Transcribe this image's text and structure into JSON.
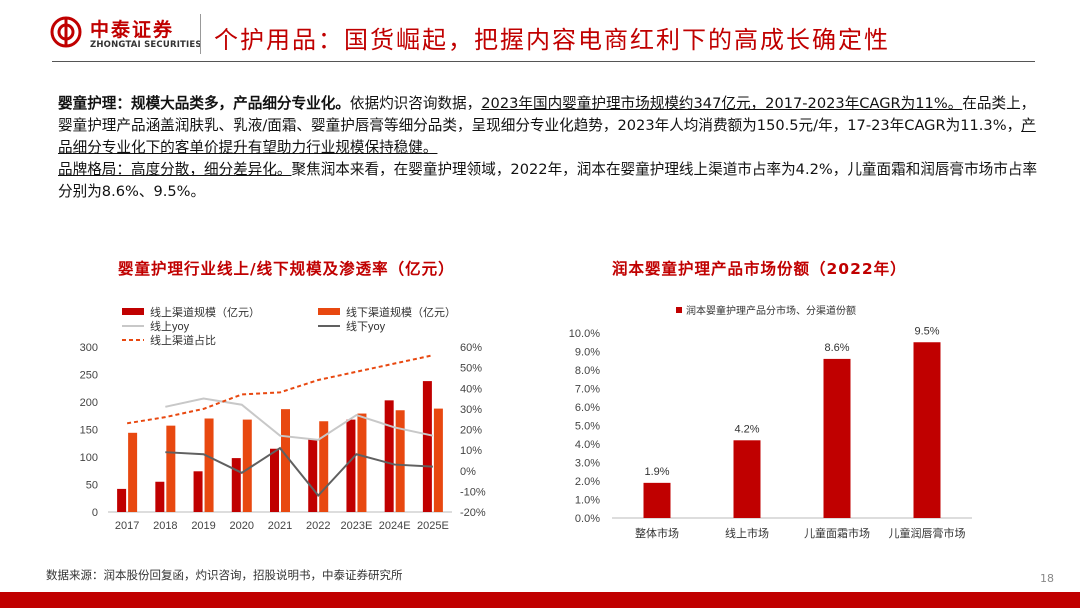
{
  "header": {
    "logo_cn": "中泰证券",
    "logo_en": "ZHONGTAI SECURITIES",
    "title": "个护用品：国货崛起，把握内容电商红利下的高成长确定性"
  },
  "body": {
    "p1_bold": "婴童护理：规模大品类多，产品细分专业化。",
    "p1_text": "依据灼识咨询数据，",
    "p1_u1": "2023年国内婴童护理市场规模约347亿元，2017-2023年CAGR为11%。",
    "p1_text2": "在品类上，婴童护理产品涵盖润肤乳、乳液/面霜、婴童护唇膏等细分品类，呈现细分专业化趋势，2023年人均消费额为150.5元/年，17-23年CAGR为11.3%，",
    "p1_u2": "产品细分专业化下的客单价提升有望助力行业规模保持稳健。",
    "p2_u_bold": "品牌格局：高度分散，细分差异化。",
    "p2_text": "聚焦润本来看，在婴童护理领域，2022年，润本在婴童护理线上渠道市占率为4.2%，儿童面霜和润唇膏市场市占率分别为8.6%、9.5%。"
  },
  "left_chart_title": "婴童护理行业线上/线下规模及渗透率（亿元）",
  "right_chart_title": "润本婴童护理产品市场份额（2022年）",
  "footer": {
    "source": "数据来源：润本股份回复函，灼识咨询，招股说明书，中泰证券研究所",
    "page": "18"
  },
  "colors": {
    "accent": "#c00000",
    "online_bar": "#c00000",
    "offline_bar": "#e84810",
    "online_yoy": "#c8c8c8",
    "offline_yoy": "#606060",
    "share_line": "#e84810"
  },
  "chart_data": [
    {
      "type": "bar",
      "categories": [
        "2017",
        "2018",
        "2019",
        "2020",
        "2021",
        "2022",
        "2023E",
        "2024E",
        "2025E"
      ],
      "series": [
        {
          "name": "线上渠道规模（亿元）",
          "type": "bar",
          "axis": "left",
          "values": [
            42,
            55,
            74,
            98,
            115,
            132,
            168,
            203,
            238
          ]
        },
        {
          "name": "线下渠道规模（亿元）",
          "type": "bar",
          "axis": "left",
          "values": [
            144,
            157,
            170,
            168,
            187,
            165,
            179,
            185,
            188
          ]
        },
        {
          "name": "线上yoy",
          "type": "line",
          "axis": "right",
          "values": [
            null,
            31,
            35,
            32,
            17,
            15,
            27,
            21,
            17
          ]
        },
        {
          "name": "线下yoy",
          "type": "line",
          "axis": "right",
          "values": [
            null,
            9,
            8,
            -1,
            11,
            -12,
            8,
            3,
            2
          ]
        },
        {
          "name": "线上渠道占比",
          "type": "line",
          "dashed": true,
          "axis": "right",
          "values": [
            23,
            26,
            30,
            37,
            38,
            44,
            48,
            52,
            56
          ]
        }
      ],
      "ylim": [
        0,
        300
      ],
      "yticks": [
        "300",
        "250",
        "200",
        "150",
        "100",
        "50",
        "0"
      ],
      "y2lim": [
        -20,
        60
      ],
      "y2ticks": [
        "60%",
        "50%",
        "40%",
        "30%",
        "20%",
        "10%",
        "0%",
        "-10%",
        "-20%"
      ],
      "legend": "top"
    },
    {
      "type": "bar",
      "categories": [
        "整体市场",
        "线上市场",
        "儿童面霜市场",
        "儿童润唇膏市场"
      ],
      "series": [
        {
          "name": "润本婴童护理产品分市场、分渠道份额",
          "values": [
            1.9,
            4.2,
            8.6,
            9.5
          ]
        }
      ],
      "data_labels": [
        "1.9%",
        "4.2%",
        "8.6%",
        "9.5%"
      ],
      "ylim": [
        0,
        10
      ],
      "yticks": [
        "10.0%",
        "9.0%",
        "8.0%",
        "7.0%",
        "6.0%",
        "5.0%",
        "4.0%",
        "3.0%",
        "2.0%",
        "1.0%",
        "0.0%"
      ],
      "legend": "top"
    }
  ]
}
